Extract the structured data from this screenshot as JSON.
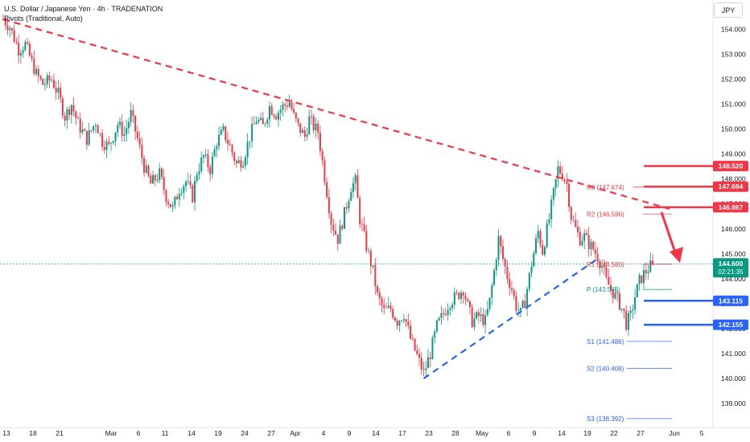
{
  "header": {
    "title": "U.S. Dollar / Japanese Yen · 4h · TRADENATION",
    "indicator": "Pivots (Traditional, Auto)"
  },
  "currency_button": "JPY",
  "colors": {
    "up": "#089981",
    "down": "#f23645",
    "resistance": "#f23645",
    "support": "#2962ff",
    "trendline_down": "#f23645",
    "trendline_up": "#2962ff",
    "pivot_r": "#f23645",
    "pivot_p": "#089981",
    "pivot_s": "#2962ff",
    "last_price": "#089981"
  },
  "chart_data": {
    "type": "candlestick",
    "symbol": "USDJPY",
    "timeframe": "4h",
    "ylim": [
      138.5,
      154.8
    ],
    "y_ticks": [
      "154.000",
      "153.000",
      "152.000",
      "151.000",
      "150.000",
      "149.000",
      "148.000",
      "147.000",
      "146.000",
      "145.000",
      "144.000",
      "143.000",
      "142.000",
      "141.000",
      "140.000",
      "139.000"
    ],
    "x_ticks": [
      "13",
      "18",
      "21",
      "Mar",
      "6",
      "11",
      "14",
      "19",
      "24",
      "27",
      "Apr",
      "4",
      "9",
      "14",
      "17",
      "23",
      "28",
      "May",
      "6",
      "9",
      "14",
      "19",
      "22",
      "27",
      "Jun",
      "5"
    ],
    "ohlc_path": [
      [
        0,
        154.4
      ],
      [
        3,
        154.1
      ],
      [
        7,
        153.2
      ],
      [
        10,
        153.4
      ],
      [
        15,
        152.2
      ],
      [
        18,
        151.8
      ],
      [
        22,
        152.0
      ],
      [
        25,
        151.4
      ],
      [
        28,
        150.5
      ],
      [
        31,
        151.0
      ],
      [
        34,
        150.2
      ],
      [
        38,
        149.6
      ],
      [
        42,
        150.3
      ],
      [
        45,
        149.5
      ],
      [
        48,
        149.3
      ],
      [
        52,
        150.2
      ],
      [
        55,
        149.8
      ],
      [
        58,
        150.6
      ],
      [
        61,
        149.6
      ],
      [
        64,
        148.5
      ],
      [
        67,
        147.8
      ],
      [
        71,
        148.2
      ],
      [
        74,
        147.3
      ],
      [
        77,
        146.8
      ],
      [
        80,
        147.6
      ],
      [
        83,
        147.9
      ],
      [
        86,
        147.3
      ],
      [
        88,
        148.3
      ],
      [
        91,
        148.9
      ],
      [
        94,
        148.4
      ],
      [
        97,
        149.5
      ],
      [
        100,
        149.9
      ],
      [
        103,
        149.3
      ],
      [
        106,
        148.6
      ],
      [
        109,
        148.8
      ],
      [
        112,
        149.7
      ],
      [
        115,
        150.4
      ],
      [
        118,
        150.1
      ],
      [
        121,
        150.9
      ],
      [
        124,
        150.6
      ],
      [
        127,
        150.9
      ],
      [
        130,
        151.1
      ],
      [
        132,
        150.5
      ],
      [
        134,
        150.1
      ],
      [
        137,
        149.7
      ],
      [
        139,
        150.4
      ],
      [
        141,
        150.1
      ],
      [
        143,
        149.9
      ],
      [
        146,
        148.1
      ],
      [
        149,
        146.3
      ],
      [
        152,
        145.6
      ],
      [
        155,
        146.6
      ],
      [
        158,
        147.7
      ],
      [
        160,
        147.9
      ],
      [
        162,
        146.4
      ],
      [
        165,
        145.3
      ],
      [
        168,
        144.3
      ],
      [
        170,
        143.3
      ],
      [
        173,
        142.7
      ],
      [
        176,
        142.8
      ],
      [
        179,
        142.3
      ],
      [
        182,
        142.6
      ],
      [
        185,
        141.6
      ],
      [
        188,
        140.9
      ],
      [
        191,
        140.2
      ],
      [
        194,
        141.0
      ],
      [
        197,
        142.1
      ],
      [
        200,
        142.6
      ],
      [
        203,
        143.1
      ],
      [
        206,
        143.3
      ],
      [
        209,
        143.6
      ],
      [
        211,
        142.9
      ],
      [
        213,
        142.3
      ],
      [
        216,
        142.5
      ],
      [
        219,
        142.3
      ],
      [
        221,
        143.1
      ],
      [
        223,
        144.3
      ],
      [
        225,
        145.6
      ],
      [
        227,
        144.8
      ],
      [
        229,
        144.1
      ],
      [
        231,
        143.6
      ],
      [
        233,
        142.9
      ],
      [
        235,
        142.6
      ],
      [
        237,
        143.1
      ],
      [
        240,
        144.6
      ],
      [
        243,
        145.9
      ],
      [
        245,
        145.1
      ],
      [
        248,
        146.4
      ],
      [
        250,
        147.4
      ],
      [
        252,
        148.4
      ],
      [
        254,
        148.2
      ],
      [
        256,
        147.8
      ],
      [
        258,
        146.5
      ],
      [
        260,
        146.0
      ],
      [
        262,
        145.6
      ],
      [
        264,
        145.7
      ],
      [
        266,
        145.4
      ],
      [
        268,
        145.2
      ],
      [
        270,
        144.9
      ],
      [
        272,
        144.5
      ],
      [
        274,
        143.9
      ],
      [
        276,
        143.6
      ],
      [
        278,
        143.3
      ],
      [
        280,
        143.0
      ],
      [
        282,
        142.6
      ],
      [
        283,
        142.2
      ],
      [
        285,
        142.5
      ],
      [
        287,
        143.3
      ],
      [
        289,
        143.9
      ],
      [
        291,
        144.2
      ],
      [
        293,
        144.4
      ],
      [
        295,
        144.6
      ]
    ],
    "pivots": [
      {
        "name": "R3",
        "label": "R3 (147.674)",
        "value": 147.674
      },
      {
        "name": "R2",
        "label": "R2 (146.596)",
        "value": 146.596
      },
      {
        "name": "R1",
        "label": "R1 (144.580)",
        "value": 144.58
      },
      {
        "name": "P",
        "label": "P (143.569)",
        "value": 143.569
      },
      {
        "name": "S1",
        "label": "S1 (141.486)",
        "value": 141.486
      },
      {
        "name": "S2",
        "label": "S2 (140.408)",
        "value": 140.408
      },
      {
        "name": "S3",
        "label": "S3 (138.392)",
        "value": 138.392
      }
    ],
    "resistance_levels": [
      148.52,
      147.694,
      146.867
    ],
    "support_levels": [
      143.115,
      142.155
    ],
    "level_labels": [
      "148.520",
      "147.694",
      "146.867",
      "143.115",
      "142.155"
    ],
    "last_price": {
      "value": 144.6,
      "label": "144.600",
      "countdown": "02:21:35"
    },
    "trendlines": [
      {
        "name": "descending-resistance",
        "from_bar": 0,
        "from_value": 154.4,
        "to_bar": 290,
        "to_value": 146.8,
        "style": "dashed"
      },
      {
        "name": "ascending-support",
        "from_bar": 191,
        "from_value": 140.0,
        "to_bar": 270,
        "to_value": 144.8,
        "style": "dashed"
      }
    ],
    "arrow": {
      "direction": "down",
      "from_value": 146.8,
      "to_value": 144.7
    },
    "grid": false
  }
}
